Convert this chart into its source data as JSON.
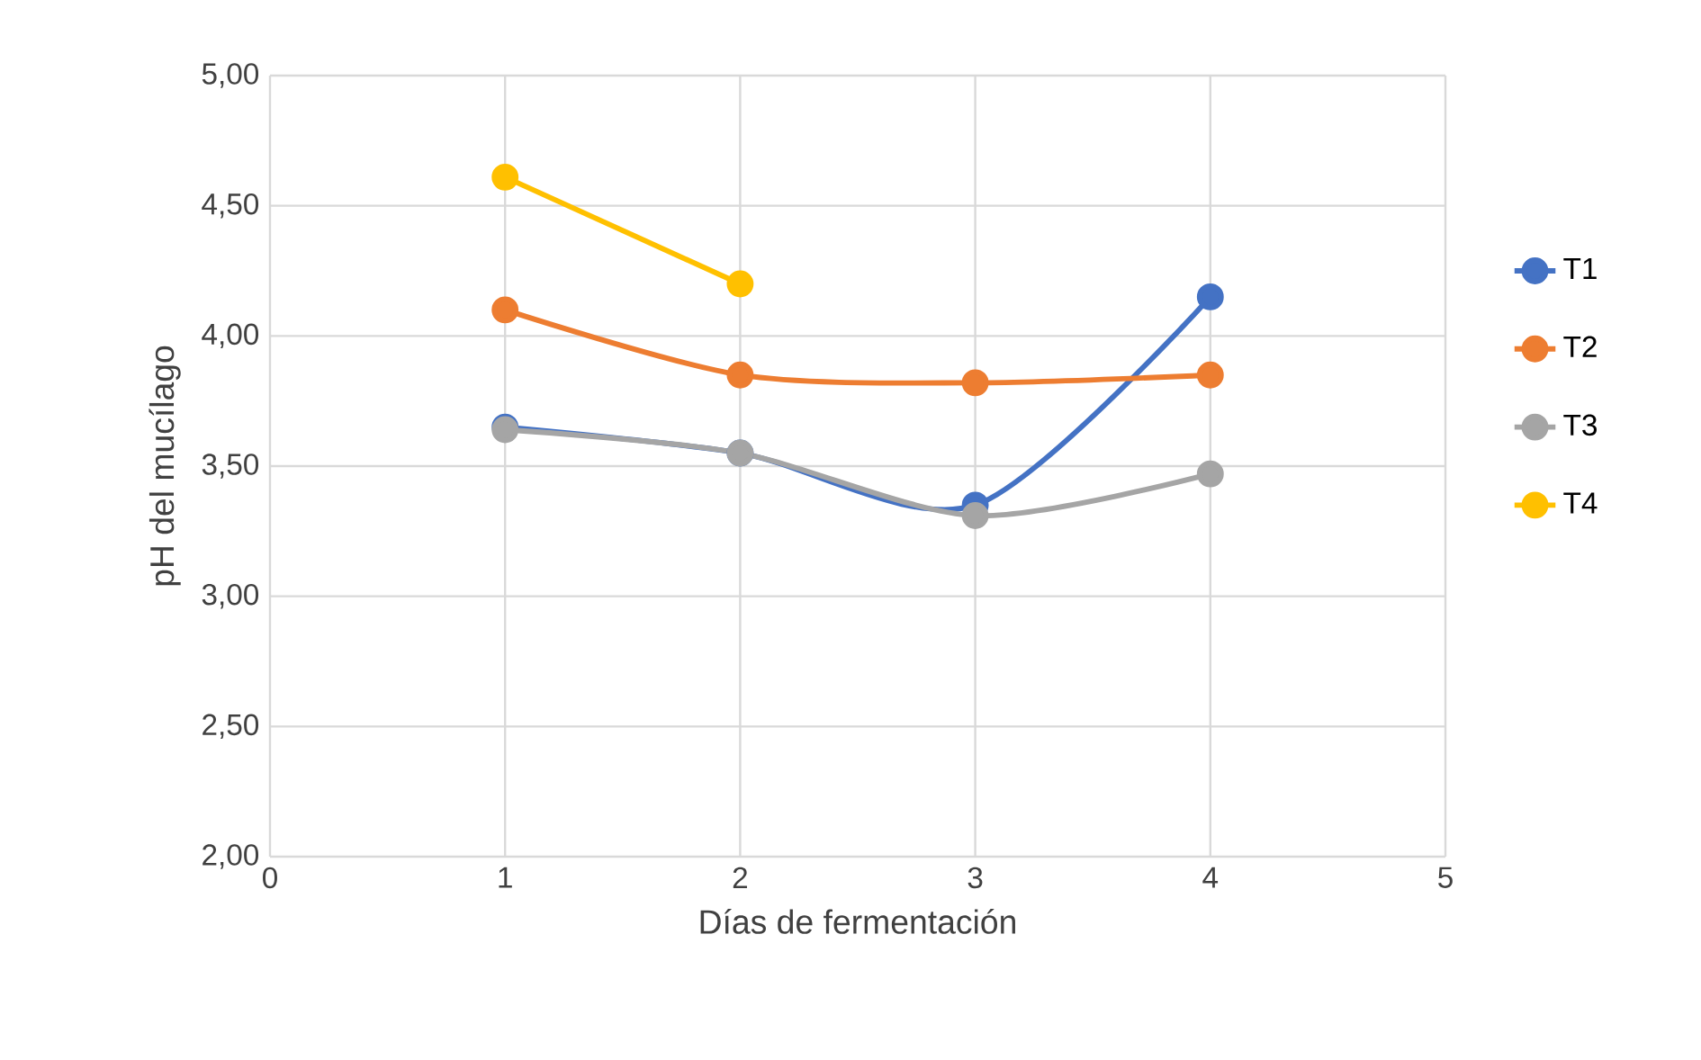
{
  "chart_data": {
    "type": "line",
    "xlabel": "Días de fermentación",
    "ylabel": "pH del mucílago",
    "x": [
      1,
      2,
      3,
      4
    ],
    "series": [
      {
        "name": "T1",
        "color": "#4472c4",
        "values": [
          3.65,
          3.55,
          3.35,
          4.15
        ]
      },
      {
        "name": "T2",
        "color": "#ed7d31",
        "values": [
          4.1,
          3.85,
          3.82,
          3.85
        ]
      },
      {
        "name": "T3",
        "color": "#a5a5a5",
        "values": [
          3.64,
          3.55,
          3.31,
          3.47
        ]
      },
      {
        "name": "T4",
        "color": "#ffc000",
        "values": [
          4.61,
          4.2,
          null,
          null
        ]
      }
    ],
    "xlim": [
      0,
      5
    ],
    "xticks": [
      0,
      1,
      2,
      3,
      4,
      5
    ],
    "ylim": [
      2,
      5
    ],
    "yticks": [
      {
        "value": 2,
        "label": "2,00"
      },
      {
        "value": 2.5,
        "label": "2,50"
      },
      {
        "value": 3,
        "label": "3,00"
      },
      {
        "value": 3.5,
        "label": "3,50"
      },
      {
        "value": 4,
        "label": "4,00"
      },
      {
        "value": 4.5,
        "label": "4,50"
      },
      {
        "value": 5,
        "label": "5,00"
      }
    ],
    "grid": true,
    "legend": "right",
    "marker": "circle"
  }
}
